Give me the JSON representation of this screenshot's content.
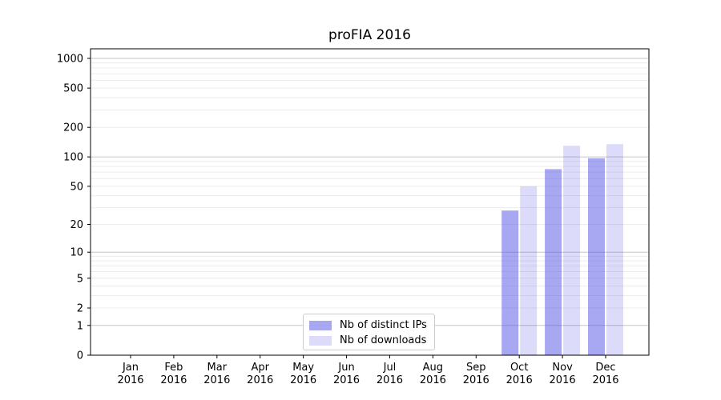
{
  "chart_data": {
    "type": "bar",
    "title": "proFIA 2016",
    "categories": [
      "Jan",
      "Feb",
      "Mar",
      "Apr",
      "May",
      "Jun",
      "Jul",
      "Aug",
      "Sep",
      "Oct",
      "Nov",
      "Dec"
    ],
    "x_year": "2016",
    "series": [
      {
        "name": "Nb of distinct IPs",
        "color": "rgba(80,80,230,0.5)",
        "values": [
          0,
          0,
          0,
          0,
          0,
          0,
          0,
          0,
          0,
          28,
          75,
          97
        ]
      },
      {
        "name": "Nb of downloads",
        "color": "rgba(80,80,230,0.2)",
        "values": [
          0,
          0,
          0,
          0,
          0,
          0,
          0,
          0,
          0,
          50,
          130,
          135
        ]
      }
    ],
    "y_scale": "log1p",
    "y_ticks": [
      0,
      1,
      2,
      5,
      10,
      20,
      50,
      100,
      200,
      500,
      1000
    ],
    "y_grid_major": [
      1,
      10,
      100,
      1000
    ],
    "ylim": [
      0,
      1250
    ],
    "grid": true,
    "legend_position": "lower center",
    "colors": {
      "grid_major": "#c6c6c6",
      "grid_minor": "#ececec",
      "axis": "#000000",
      "text": "#000000"
    }
  }
}
